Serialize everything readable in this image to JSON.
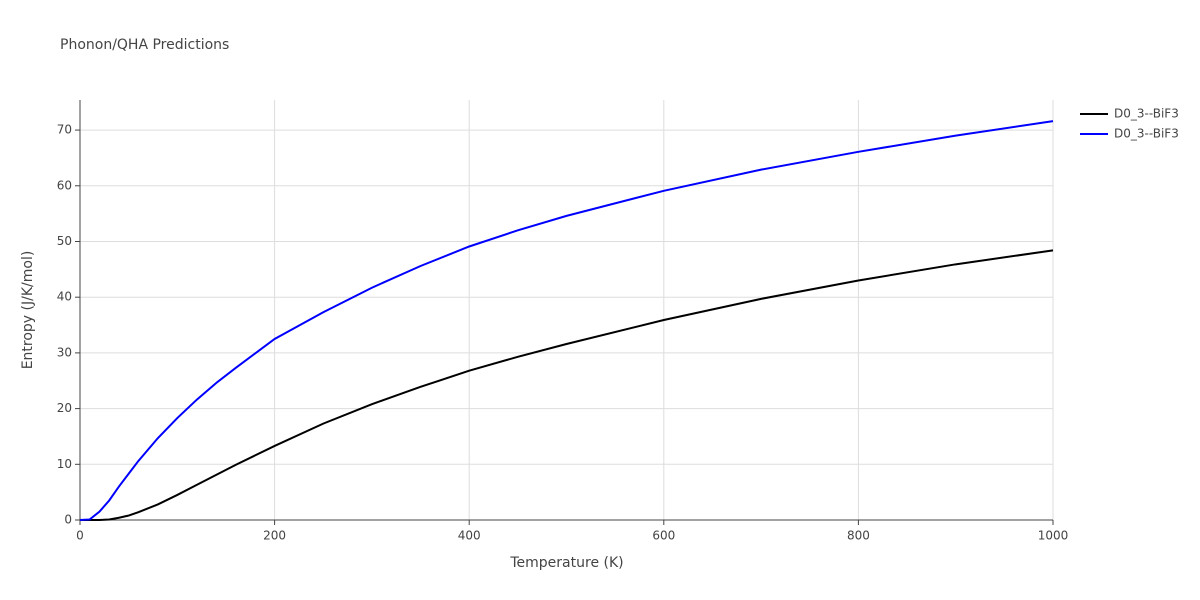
{
  "chart_data": {
    "type": "line",
    "title": "Phonon/QHA Predictions",
    "x_label": "Temperature (K)",
    "y_label": "Entropy (J/K/mol)",
    "x": [
      0,
      10,
      20,
      30,
      40,
      50,
      60,
      80,
      100,
      120,
      140,
      160,
      180,
      200,
      250,
      300,
      350,
      400,
      450,
      500,
      600,
      700,
      800,
      900,
      1000
    ],
    "series": [
      {
        "name": "D0_3--BiF3",
        "color": "#000000",
        "values": [
          0,
          0,
          0,
          0.1,
          0.4,
          0.8,
          1.4,
          2.8,
          4.5,
          6.3,
          8.1,
          9.9,
          11.6,
          13.3,
          17.3,
          20.8,
          23.9,
          26.8,
          29.3,
          31.6,
          35.9,
          39.7,
          43.0,
          45.9,
          48.4
        ]
      },
      {
        "name": "D0_3--BiF3",
        "color": "#0000ff",
        "values": [
          0,
          0.1,
          1.5,
          3.5,
          6,
          8.3,
          10.6,
          14.7,
          18.3,
          21.6,
          24.6,
          27.3,
          29.9,
          32.5,
          37.3,
          41.7,
          45.6,
          49.1,
          52.0,
          54.6,
          59.1,
          62.9,
          66.1,
          69.0,
          71.6
        ]
      }
    ],
    "xlim": [
      0,
      1000
    ],
    "xticks": [
      0,
      200,
      400,
      600,
      800,
      1000
    ],
    "ylim": [
      0,
      75.4
    ],
    "yticks": [
      0,
      10,
      20,
      30,
      40,
      50,
      60,
      70
    ],
    "grid": true,
    "legend": "right"
  }
}
